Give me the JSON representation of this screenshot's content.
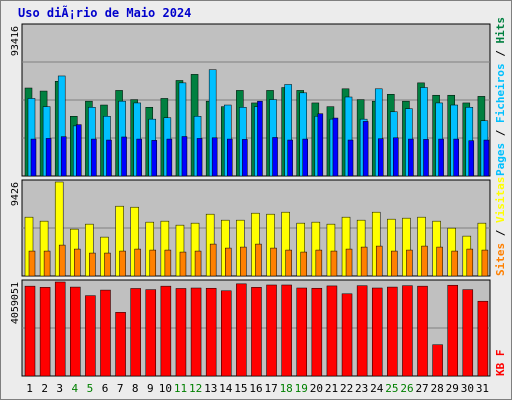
{
  "title": "Uso diÃ¡rio de Maio 2024",
  "chart_data": [
    {
      "type": "bar",
      "name": "hits-pages-files",
      "categories": [
        "1",
        "2",
        "3",
        "4",
        "5",
        "6",
        "7",
        "8",
        "9",
        "10",
        "11",
        "12",
        "13",
        "14",
        "15",
        "16",
        "17",
        "18",
        "19",
        "20",
        "21",
        "22",
        "23",
        "24",
        "25",
        "26",
        "27",
        "28",
        "29",
        "30",
        "31"
      ],
      "ymax_label": "93416",
      "ylim": [
        0,
        93416
      ],
      "legend": [
        "Hits",
        "Ficheiros",
        "Pages"
      ],
      "colors": {
        "hits": "#008040",
        "files": "#00c0ff",
        "pages": "#0000ff"
      },
      "series": [
        {
          "name": "Hits",
          "values": [
            54800,
            52900,
            59000,
            37200,
            46600,
            44200,
            53300,
            47600,
            42800,
            48300,
            59500,
            63300,
            46600,
            43200,
            53300,
            45500,
            53300,
            55100,
            53300,
            45500,
            43200,
            54300,
            47600,
            46600,
            50900,
            46600,
            58000,
            50300,
            50300,
            45500,
            49600
          ]
        },
        {
          "name": "Ficheiros",
          "values": [
            48300,
            43200,
            62300,
            31200,
            42800,
            37200,
            46600,
            45500,
            35400,
            36300,
            58000,
            37200,
            66200,
            44200,
            42800,
            43200,
            47600,
            57000,
            51800,
            37200,
            35400,
            49200,
            35400,
            54300,
            40000,
            41900,
            55100,
            45500,
            44200,
            42800,
            34400
          ]
        },
        {
          "name": "Pages",
          "values": [
            23000,
            23400,
            24500,
            32000,
            23000,
            22400,
            24300,
            23000,
            22200,
            23000,
            24600,
            23400,
            23800,
            23000,
            22800,
            46600,
            24000,
            22400,
            23000,
            38800,
            36100,
            22400,
            34000,
            23200,
            23800,
            23000,
            22800,
            23000,
            23000,
            22000,
            22400
          ]
        }
      ]
    },
    {
      "type": "bar",
      "name": "sites-visits",
      "categories": [
        "1",
        "2",
        "3",
        "4",
        "5",
        "6",
        "7",
        "8",
        "9",
        "10",
        "11",
        "12",
        "13",
        "14",
        "15",
        "16",
        "17",
        "18",
        "19",
        "20",
        "21",
        "22",
        "23",
        "24",
        "25",
        "26",
        "27",
        "28",
        "29",
        "30",
        "31"
      ],
      "ymax_label": "9426",
      "ylim": [
        0,
        9426
      ],
      "legend": [
        "Visitas",
        "Sites"
      ],
      "colors": {
        "visits": "#ffff00",
        "sites": "#ff8000"
      },
      "series": [
        {
          "name": "Visitas",
          "values": [
            5900,
            5500,
            9426,
            4700,
            5200,
            3900,
            7000,
            6900,
            5400,
            5500,
            5100,
            5300,
            6200,
            5600,
            5600,
            6300,
            6200,
            6400,
            5300,
            5400,
            5200,
            5900,
            5600,
            6400,
            5700,
            5800,
            5900,
            5500,
            4800,
            4000,
            5300
          ]
        },
        {
          "name": "Sites",
          "values": [
            2500,
            2500,
            3100,
            2700,
            2300,
            2300,
            2500,
            2700,
            2600,
            2600,
            2400,
            2500,
            3200,
            2800,
            2900,
            3200,
            2800,
            2600,
            2400,
            2600,
            2500,
            2700,
            2900,
            3000,
            2500,
            2600,
            3000,
            2900,
            2500,
            2700,
            2600
          ]
        }
      ]
    },
    {
      "type": "bar",
      "name": "kbytes",
      "categories": [
        "1",
        "2",
        "3",
        "4",
        "5",
        "6",
        "7",
        "8",
        "9",
        "10",
        "11",
        "12",
        "13",
        "14",
        "15",
        "16",
        "17",
        "18",
        "19",
        "20",
        "21",
        "22",
        "23",
        "24",
        "25",
        "26",
        "27",
        "28",
        "29",
        "30",
        "31"
      ],
      "ymax_label": "4059051",
      "ylim": [
        0,
        4059051
      ],
      "legend": [
        "KB F"
      ],
      "colors": {
        "kb": "#ff0000"
      },
      "series": [
        {
          "name": "KB F",
          "values": [
            3880000,
            3830000,
            4059051,
            3840000,
            3470000,
            3710000,
            2750000,
            3780000,
            3730000,
            3880000,
            3780000,
            3800000,
            3790000,
            3680000,
            3980000,
            3830000,
            3930000,
            3930000,
            3800000,
            3790000,
            3890000,
            3550000,
            3900000,
            3800000,
            3840000,
            3900000,
            3880000,
            1350000,
            3920000,
            3730000,
            3230000
          ]
        }
      ]
    }
  ],
  "weekend_days": [
    "4",
    "5",
    "11",
    "12",
    "18",
    "19",
    "25",
    "26"
  ],
  "axis_labels": {
    "top_right": [
      "Hits",
      "Ficheiros",
      "Pages"
    ],
    "mid_right": [
      "Visitas",
      "Sites"
    ],
    "bottom_right": [
      "KB F"
    ]
  },
  "colors": {
    "panel_bg": "#c0c0c0",
    "title": "#0000cc",
    "weekday_label": "#000000",
    "weekend_label": "#008000"
  }
}
